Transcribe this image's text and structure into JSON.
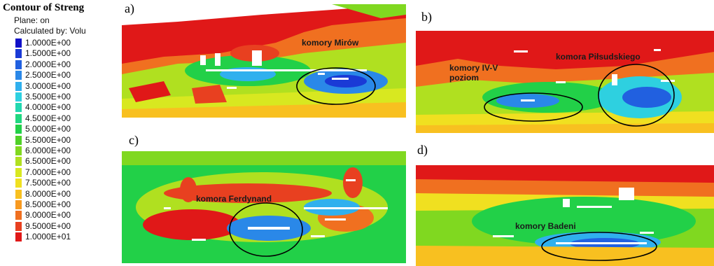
{
  "legend": {
    "title": "Contour of Streng",
    "plane": "Plane: on",
    "calculated_by": "Calculated by: Volu",
    "entries": [
      {
        "label": "1.0000E+00",
        "color": "#1010c8"
      },
      {
        "label": "1.5000E+00",
        "color": "#1a3ad6"
      },
      {
        "label": "2.0000E+00",
        "color": "#2160e0"
      },
      {
        "label": "2.5000E+00",
        "color": "#2a88e8"
      },
      {
        "label": "3.0000E+00",
        "color": "#30b0ee"
      },
      {
        "label": "3.5000E+00",
        "color": "#2ed0e0"
      },
      {
        "label": "4.0000E+00",
        "color": "#22d8b0"
      },
      {
        "label": "4.5000E+00",
        "color": "#20d880"
      },
      {
        "label": "5.0000E+00",
        "color": "#22d048"
      },
      {
        "label": "5.5000E+00",
        "color": "#50d028"
      },
      {
        "label": "6.0000E+00",
        "color": "#80d820"
      },
      {
        "label": "6.5000E+00",
        "color": "#b0e020"
      },
      {
        "label": "7.0000E+00",
        "color": "#d8e820"
      },
      {
        "label": "7.5000E+00",
        "color": "#f0e020"
      },
      {
        "label": "8.0000E+00",
        "color": "#f8c020"
      },
      {
        "label": "8.5000E+00",
        "color": "#f89a20"
      },
      {
        "label": "9.0000E+00",
        "color": "#f07020"
      },
      {
        "label": "9.5000E+00",
        "color": "#e84020"
      },
      {
        "label": "1.0000E+01",
        "color": "#e01818"
      }
    ]
  },
  "panels": [
    {
      "letter": "a)",
      "annotations": [
        "komory Mirów"
      ]
    },
    {
      "letter": "b)",
      "annotations": [
        "komory IV-V\npoziom",
        "komora Piłsudskiego"
      ]
    },
    {
      "letter": "c)",
      "annotations": [
        "komora Ferdynand"
      ]
    },
    {
      "letter": "d)",
      "annotations": [
        "komory Badeni"
      ]
    }
  ]
}
